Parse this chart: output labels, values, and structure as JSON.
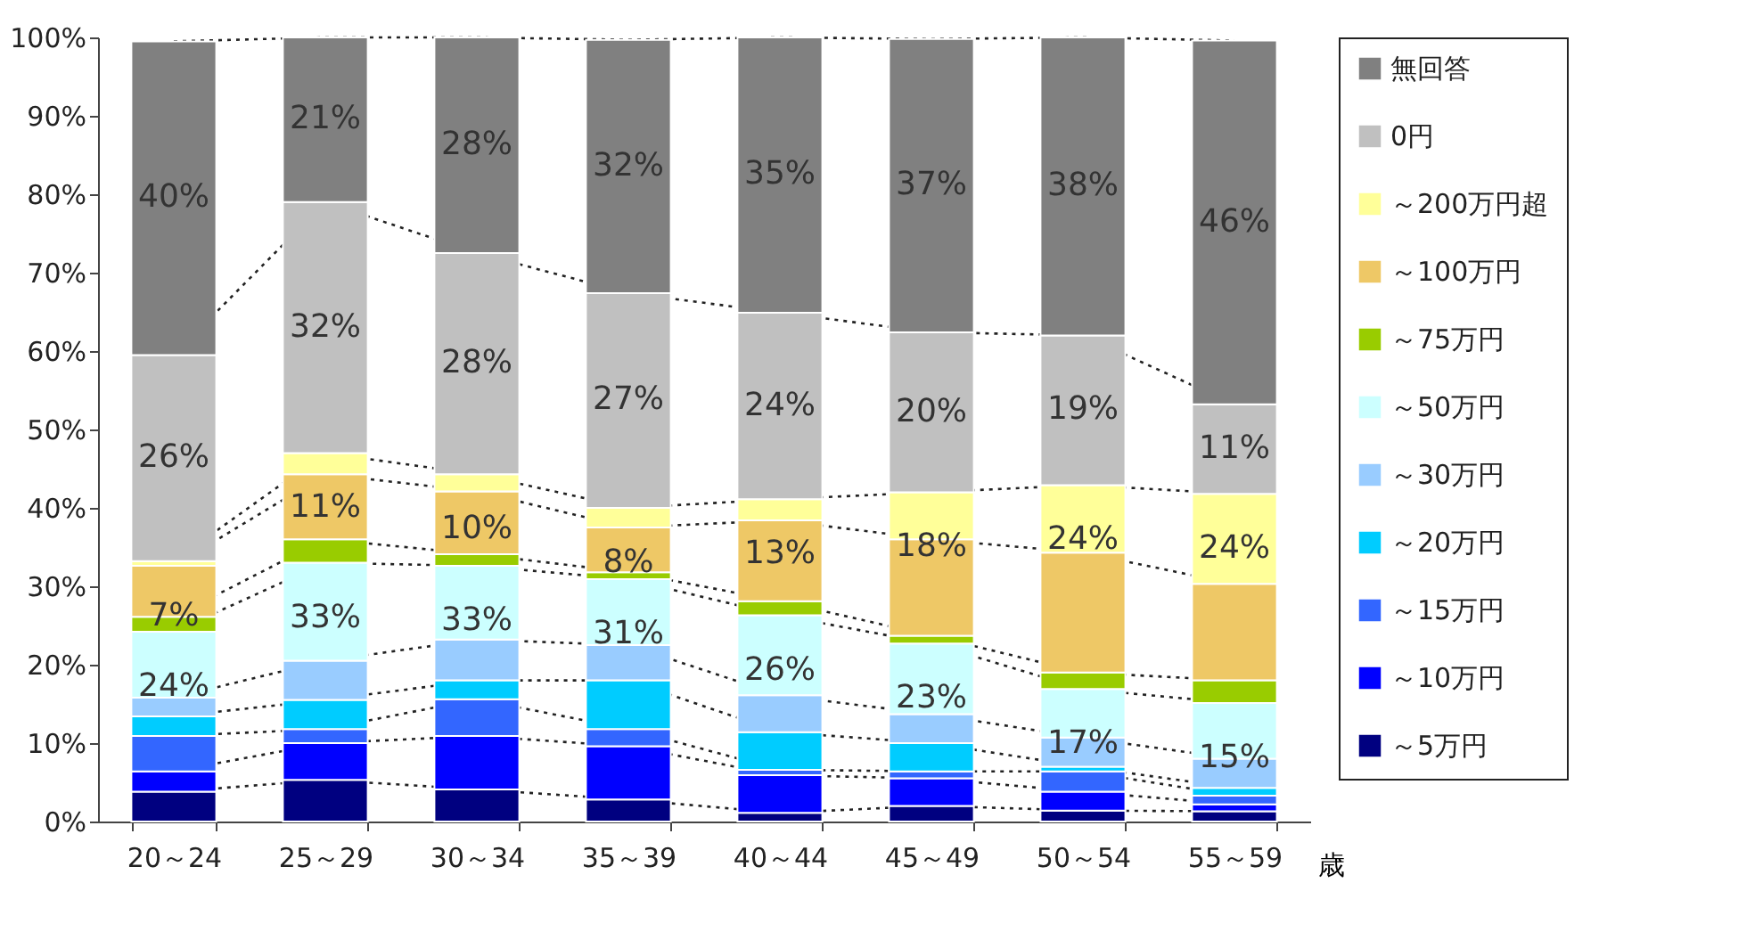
{
  "chart_data": {
    "type": "bar",
    "stacked": true,
    "xlabel": "歳",
    "legend": "right",
    "grid": false,
    "categories": [
      "20～24",
      "25～29",
      "30～34",
      "35～39",
      "40～44",
      "45～49",
      "50～54",
      "55～59"
    ],
    "ylim": [
      0,
      100
    ],
    "yticks": [
      {
        "value": 0,
        "label": "0%"
      },
      {
        "value": 10,
        "label": "10%"
      },
      {
        "value": 20,
        "label": "20%"
      },
      {
        "value": 30,
        "label": "30%"
      },
      {
        "value": 40,
        "label": "40%"
      },
      {
        "value": 50,
        "label": "50%"
      },
      {
        "value": 60,
        "label": "60%"
      },
      {
        "value": 70,
        "label": "70%"
      },
      {
        "value": 80,
        "label": "80%"
      },
      {
        "value": 90,
        "label": "90%"
      },
      {
        "value": 100,
        "label": "100%"
      }
    ],
    "series": [
      {
        "name": "～5万円",
        "color": "#000080",
        "values": [
          3.8,
          5.3,
          4.1,
          2.8,
          1.1,
          2.0,
          1.4,
          1.3
        ]
      },
      {
        "name": "～10万円",
        "color": "#0000ff",
        "values": [
          2.6,
          4.7,
          6.8,
          6.8,
          4.8,
          3.5,
          2.4,
          0.9
        ]
      },
      {
        "name": "～15万円",
        "color": "#3366ff",
        "values": [
          4.5,
          1.8,
          4.7,
          2.2,
          0.7,
          0.9,
          2.6,
          1.1
        ]
      },
      {
        "name": "～20万円",
        "color": "#00ccff",
        "values": [
          2.5,
          3.7,
          2.4,
          6.2,
          4.8,
          3.6,
          0.6,
          1.0
        ]
      },
      {
        "name": "～30万円",
        "color": "#99ccff",
        "values": [
          2.4,
          5.0,
          5.2,
          4.5,
          4.7,
          3.7,
          3.7,
          3.7
        ]
      },
      {
        "name": "～50万円",
        "color": "#ccffff",
        "values": [
          8.4,
          12.5,
          9.4,
          8.4,
          10.2,
          9.0,
          6.2,
          7.1
        ]
      },
      {
        "name": "～75万円",
        "color": "#99cc00",
        "values": [
          1.9,
          3.0,
          1.5,
          0.9,
          1.8,
          1.0,
          2.1,
          2.9
        ]
      },
      {
        "name": "～100万円",
        "color": "#eec866",
        "values": [
          6.5,
          8.3,
          8.0,
          5.7,
          10.3,
          12.3,
          15.3,
          12.3
        ]
      },
      {
        "name": "～200万円超",
        "color": "#ffff99",
        "values": [
          0.6,
          2.7,
          2.2,
          2.5,
          2.7,
          6.0,
          8.6,
          11.5
        ]
      },
      {
        "name": "0円",
        "color": "#c0c0c0",
        "values": [
          26.3,
          32.0,
          28.2,
          27.4,
          23.8,
          20.4,
          19.1,
          11.4
        ],
        "value_labels": [
          "26%",
          "32%",
          "28%",
          "27%",
          "24%",
          "20%",
          "19%",
          "11%"
        ]
      },
      {
        "name": "無回答",
        "color": "#808080",
        "values": [
          40.0,
          21.0,
          27.5,
          32.3,
          35.1,
          37.4,
          38.0,
          46.4
        ],
        "value_labels": [
          "40%",
          "21%",
          "28%",
          "32%",
          "35%",
          "37%",
          "38%",
          "46%"
        ]
      }
    ],
    "annotations": [
      {
        "text": "24%",
        "x": "20～24",
        "y": 24.2
      },
      {
        "text": "7%",
        "x": "20～24",
        "y": 33.2
      },
      {
        "text": "33%",
        "x": "25～29",
        "y": 33.0
      },
      {
        "text": "11%",
        "x": "25～29",
        "y": 47.0
      },
      {
        "text": "33%",
        "x": "30～34",
        "y": 32.6
      },
      {
        "text": "10%",
        "x": "30～34",
        "y": 44.3
      },
      {
        "text": "31%",
        "x": "35～39",
        "y": 30.9
      },
      {
        "text": "8%",
        "x": "35～39",
        "y": 40.0
      },
      {
        "text": "26%",
        "x": "40～44",
        "y": 26.3
      },
      {
        "text": "13%",
        "x": "40～44",
        "y": 41.1
      },
      {
        "text": "23%",
        "x": "45～49",
        "y": 22.7
      },
      {
        "text": "18%",
        "x": "45～49",
        "y": 42.0
      },
      {
        "text": "17%",
        "x": "50～54",
        "y": 16.9
      },
      {
        "text": "24%",
        "x": "50～54",
        "y": 42.9
      },
      {
        "text": "15%",
        "x": "55～59",
        "y": 15.1
      },
      {
        "text": "24%",
        "x": "55～59",
        "y": 41.8
      }
    ]
  }
}
